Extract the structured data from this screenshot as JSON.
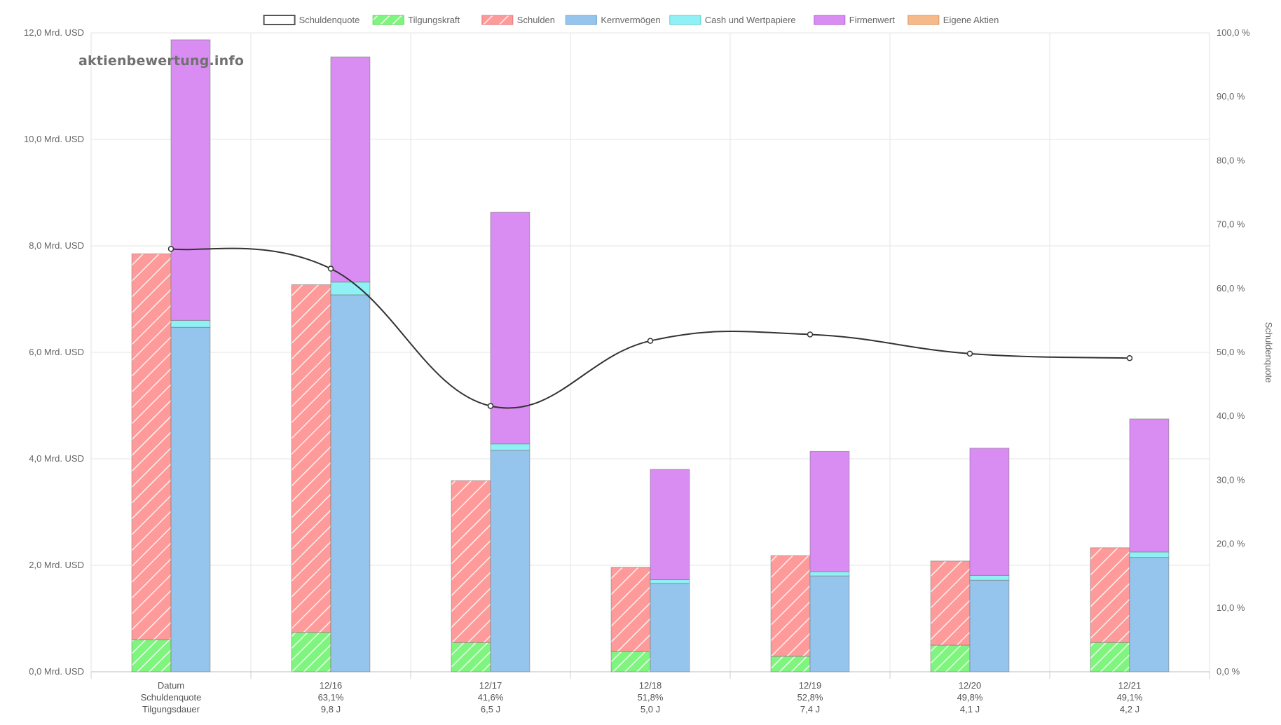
{
  "watermark": "aktienbewertung.info",
  "chart_data": {
    "type": "bar",
    "title": "",
    "legend_position": "top",
    "legend": [
      {
        "name": "Schuldenquote",
        "color": "#ffffff",
        "border": "#555555",
        "pattern": false
      },
      {
        "name": "Tilgungskraft",
        "color": "#7ff57f",
        "border": "#5ad65a",
        "pattern": true
      },
      {
        "name": "Schulden",
        "color": "#ff9a9a",
        "border": "#e07a7a",
        "pattern": true
      },
      {
        "name": "Kernvermögen",
        "color": "#95c5ed",
        "border": "#6fa3d0",
        "pattern": false
      },
      {
        "name": "Cash und Wertpapiere",
        "color": "#8ff0f5",
        "border": "#5ccdd4",
        "pattern": false
      },
      {
        "name": "Firmenwert",
        "color": "#d98cf2",
        "border": "#b066d0",
        "pattern": false
      },
      {
        "name": "Eigene Aktien",
        "color": "#f5b98a",
        "border": "#d8955f",
        "pattern": false
      }
    ],
    "categories": [
      "Datum",
      "12/16",
      "12/17",
      "12/18",
      "12/19",
      "12/20",
      "12/21"
    ],
    "category_rows": [
      [
        "Datum",
        "12/16",
        "12/17",
        "12/18",
        "12/19",
        "12/20",
        "12/21"
      ],
      [
        "Schuldenquote",
        "63,1%",
        "41,6%",
        "51,8%",
        "52,8%",
        "49,8%",
        "49,1%"
      ],
      [
        "Tilgungsdauer",
        "9,8 J",
        "6,5 J",
        "5,0 J",
        "7,4 J",
        "4,1 J",
        "4,2 J"
      ]
    ],
    "stack_left": {
      "Tilgungskraft": [
        0.6,
        0.74,
        0.55,
        0.38,
        0.29,
        0.5,
        0.55
      ],
      "Schulden": [
        7.25,
        6.53,
        3.04,
        1.58,
        1.89,
        1.58,
        1.78
      ]
    },
    "stack_right": {
      "Kernvermögen": [
        6.47,
        7.08,
        4.16,
        1.66,
        1.8,
        1.72,
        2.15
      ],
      "Cash und Wertpapiere": [
        0.13,
        0.24,
        0.12,
        0.07,
        0.08,
        0.09,
        0.1
      ],
      "Firmenwert": [
        5.27,
        4.23,
        4.35,
        2.07,
        2.26,
        2.39,
        2.5
      ],
      "Eigene Aktien": [
        0,
        0,
        0,
        0,
        0,
        0,
        0
      ]
    },
    "line": {
      "name": "Schuldenquote",
      "values": [
        66.2,
        63.1,
        41.6,
        51.8,
        52.8,
        49.8,
        49.1
      ],
      "color": "#333333"
    },
    "y_left": {
      "min": 0,
      "max": 12,
      "step": 2,
      "ticks": [
        "0,0 Mrd. USD",
        "2,0 Mrd. USD",
        "4,0 Mrd. USD",
        "6,0 Mrd. USD",
        "8,0 Mrd. USD",
        "10,0 Mrd. USD",
        "12,0 Mrd. USD"
      ]
    },
    "y_right": {
      "label": "Schuldenquote",
      "min": 0,
      "max": 100,
      "step": 10,
      "ticks": [
        "0,0 %",
        "10,0 %",
        "20,0 %",
        "30,0 %",
        "40,0 %",
        "50,0 %",
        "60,0 %",
        "70,0 %",
        "80,0 %",
        "90,0 %",
        "100,0 %"
      ]
    },
    "grid": true
  }
}
